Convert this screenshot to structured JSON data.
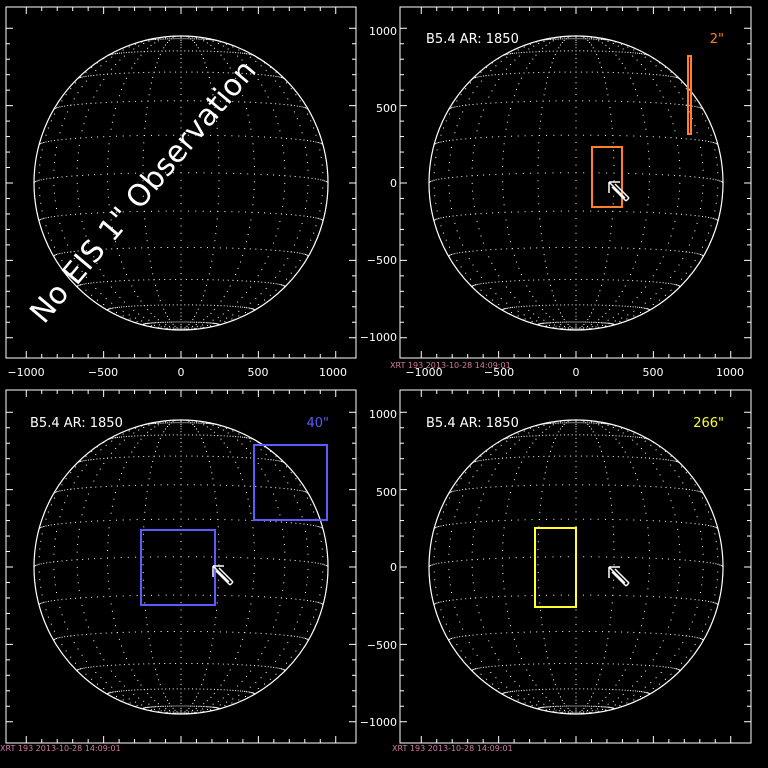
{
  "panels": [
    {
      "id": "top-left",
      "overlay_text": "No EIS 1\" Observation",
      "header": "",
      "fov_label": "",
      "fov_color": "",
      "x_ticks": [
        "−1000",
        "−500",
        "0",
        "500",
        "1000"
      ],
      "y_ticks": [],
      "footer": ""
    },
    {
      "id": "top-right",
      "overlay_text": "",
      "header": "B5.4 AR: 1850",
      "fov_label": "2\"",
      "fov_color": "#ff7f2a",
      "x_ticks": [
        "−1000",
        "−500",
        "0",
        "500",
        "1000"
      ],
      "y_ticks": [
        "1000",
        "500",
        "0",
        "−500",
        "−1000"
      ],
      "footer": "XRT 193  2013-10-28 14:09:01"
    },
    {
      "id": "bottom-left",
      "overlay_text": "",
      "header": "B5.4 AR: 1850",
      "fov_label": "40\"",
      "fov_color": "#5b5bff",
      "x_ticks": [],
      "y_ticks": [],
      "footer": "XRT 193  2013-10-28 14:09:01"
    },
    {
      "id": "bottom-right",
      "overlay_text": "",
      "header": "B5.4 AR: 1850",
      "fov_label": "266\"",
      "fov_color": "#ffff33",
      "x_ticks": [],
      "y_ticks": [
        "1000",
        "500",
        "0",
        "−500",
        "−1000"
      ],
      "footer": "XRT 193  2013-10-28 14:09:01"
    }
  ]
}
